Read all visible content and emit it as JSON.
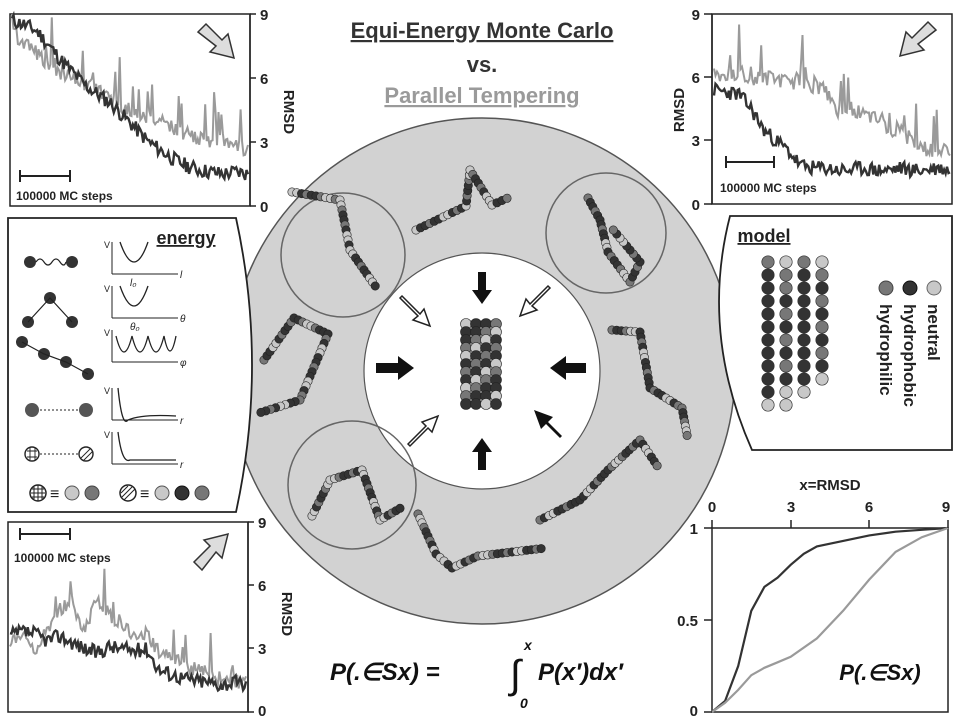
{
  "title": {
    "line1": "Equi-Energy Monte Carlo",
    "line2": "vs.",
    "line3": "Parallel Tempering"
  },
  "colors": {
    "dark_trace": "#333333",
    "light_trace": "#9a9a9a",
    "ring_fill": "#d2d2d2",
    "bead_dark": "#333333",
    "bead_mid": "#777777",
    "bead_light": "#c8c8c8"
  },
  "plots": {
    "top_left": {
      "ylabel": "RMSD",
      "ticks": [
        "0",
        "3",
        "6",
        "9"
      ],
      "scale_label": "100000 MC steps",
      "arrow_icon": "arrow-down-right-icon"
    },
    "top_right": {
      "ylabel": "RMSD",
      "ticks": [
        "0",
        "3",
        "6",
        "9"
      ],
      "scale_label": "100000 MC steps",
      "arrow_icon": "arrow-down-left-icon"
    },
    "bottom_left": {
      "ylabel": "RMSD",
      "ticks": [
        "0",
        "3",
        "6",
        "9"
      ],
      "scale_label": "100000 MC steps",
      "arrow_icon": "arrow-up-right-icon"
    },
    "bottom_right": {
      "xlabel": "x=RMSD",
      "xticks": [
        "0",
        "3",
        "6",
        "9"
      ],
      "yticks": [
        "0",
        "0.5",
        "1"
      ],
      "label": "P(.∈Sx)"
    }
  },
  "energy_panel": {
    "title": "energy",
    "v_label": "V",
    "terms": [
      {
        "var": "l",
        "eq": "l₀"
      },
      {
        "var": "θ",
        "eq": "θ₀"
      },
      {
        "var": "φ",
        "eq": ""
      },
      {
        "var": "r",
        "eq": ""
      },
      {
        "var": "r",
        "eq": ""
      }
    ],
    "legend_sym": "≡"
  },
  "model_panel": {
    "title": "model",
    "legend": [
      "neutral",
      "hydrophobic",
      "hydrophilic"
    ]
  },
  "formula": {
    "lhs": "P(.∈Sx) =",
    "integral_upper": "x",
    "integral_lower": "0",
    "rhs": "P(x′)dx′"
  },
  "chart_data": [
    {
      "type": "line",
      "title": "",
      "ylabel": "RMSD",
      "ylim": [
        0,
        9
      ],
      "yticks": [
        0,
        3,
        6,
        9
      ],
      "series": [
        {
          "values": [
            8.7,
            8.5,
            8.2,
            7.5,
            6.8,
            6.2,
            5.6,
            5.2,
            4.8,
            4.2,
            3.6,
            3.0,
            2.6,
            2.2,
            1.9,
            1.7,
            1.6,
            1.5,
            1.6,
            1.5
          ]
        },
        {
          "values": [
            8.2,
            7.6,
            7.2,
            6.6,
            6.2,
            6.0,
            5.6,
            5.4,
            5.0,
            4.6,
            4.4,
            4.2,
            4.0,
            3.6,
            3.4,
            3.2,
            3.0,
            3.2,
            2.8,
            2.6
          ]
        }
      ]
    },
    {
      "type": "line",
      "title": "",
      "ylabel": "RMSD",
      "ylim": [
        0,
        9
      ],
      "yticks": [
        0,
        3,
        6,
        9
      ],
      "series": [
        {
          "values": [
            5.4,
            5.3,
            5.2,
            4.5,
            3.5,
            3.0,
            2.5,
            1.8,
            1.7,
            1.7,
            1.6,
            1.6,
            1.7,
            1.6,
            1.6,
            1.7,
            1.6,
            1.6,
            1.7,
            1.6
          ]
        },
        {
          "values": [
            6.2,
            6.0,
            6.3,
            5.8,
            6.0,
            5.9,
            5.7,
            5.8,
            5.6,
            5.4,
            4.4,
            4.6,
            4.2,
            4.0,
            3.6,
            3.4,
            3.0,
            2.6,
            2.4,
            2.6
          ]
        }
      ]
    },
    {
      "type": "line",
      "title": "",
      "ylabel": "RMSD",
      "ylim": [
        0,
        9
      ],
      "yticks": [
        0,
        3,
        6,
        9
      ],
      "series": [
        {
          "values": [
            3.6,
            3.8,
            3.7,
            3.4,
            3.6,
            3.3,
            3.0,
            2.8,
            3.1,
            3.0,
            2.9,
            3.0,
            2.0,
            1.8,
            1.6,
            1.5,
            1.4,
            1.3,
            1.4,
            1.3
          ]
        },
        {
          "values": [
            3.2,
            3.6,
            3.0,
            3.8,
            4.8,
            5.2,
            3.8,
            5.4,
            4.6,
            4.2,
            3.6,
            3.8,
            2.6,
            2.8,
            2.2,
            2.0,
            1.8,
            1.6,
            1.4,
            1.5
          ]
        }
      ]
    },
    {
      "type": "line",
      "title": "",
      "xlabel": "x=RMSD",
      "xlim": [
        0,
        9
      ],
      "ylim": [
        0,
        1
      ],
      "xticks": [
        0,
        3,
        6,
        9
      ],
      "yticks": [
        0,
        0.5,
        1
      ],
      "series": [
        {
          "x": [
            0,
            0.5,
            1,
            1.5,
            2,
            2.5,
            3,
            3.5,
            4,
            5,
            6,
            7,
            8,
            9
          ],
          "y": [
            0,
            0.06,
            0.25,
            0.55,
            0.68,
            0.73,
            0.8,
            0.86,
            0.9,
            0.93,
            0.96,
            0.98,
            0.99,
            1.0
          ]
        },
        {
          "x": [
            0,
            0.5,
            1,
            1.5,
            2,
            2.5,
            3,
            4,
            5,
            6,
            7,
            8,
            9
          ],
          "y": [
            0,
            0.05,
            0.12,
            0.2,
            0.24,
            0.27,
            0.3,
            0.4,
            0.55,
            0.72,
            0.87,
            0.95,
            1.0
          ]
        }
      ]
    }
  ]
}
